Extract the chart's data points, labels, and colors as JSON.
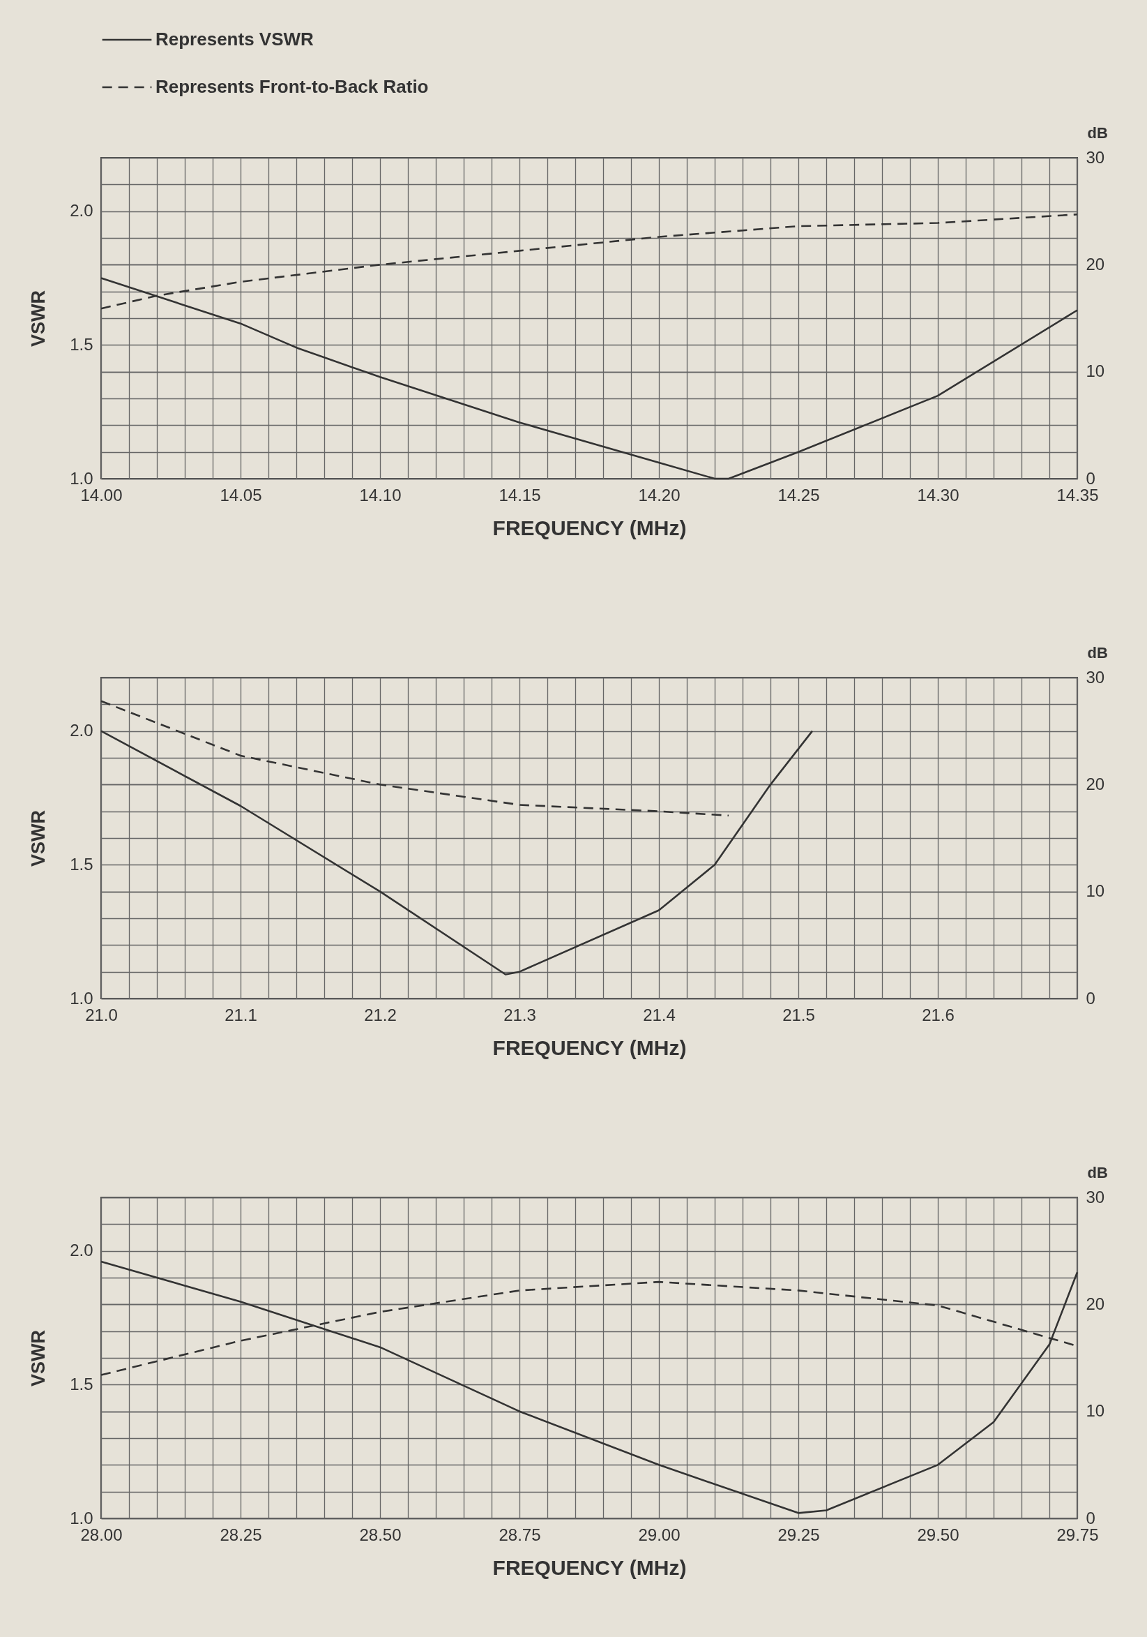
{
  "chart_data": [
    {
      "type": "line",
      "xlabel": "FREQUENCY (MHz)",
      "ylabel": "VSWR",
      "y2label": "dB",
      "legend": "top left",
      "grid": true,
      "xlim": [
        14.0,
        14.35
      ],
      "ylim": [
        1.0,
        2.2
      ],
      "y2lim": [
        0,
        30
      ],
      "xticks": [
        {
          "value": 14,
          "label": "14.00"
        },
        {
          "value": 14.01,
          "label": null
        },
        {
          "value": 14.02,
          "label": null
        },
        {
          "value": 14.03,
          "label": null
        },
        {
          "value": 14.04,
          "label": null
        },
        14.05,
        {
          "value": 14.06,
          "label": null
        },
        {
          "value": 14.07,
          "label": null
        },
        {
          "value": 14.08,
          "label": null
        },
        {
          "value": 14.09,
          "label": null
        },
        {
          "value": 14.1,
          "label": "14.10"
        },
        {
          "value": 14.11,
          "label": null
        },
        {
          "value": 14.12,
          "label": null
        },
        {
          "value": 14.13,
          "label": null
        },
        {
          "value": 14.14,
          "label": null
        },
        14.15,
        {
          "value": 14.16,
          "label": null
        },
        {
          "value": 14.17,
          "label": null
        },
        {
          "value": 14.18,
          "label": null
        },
        {
          "value": 14.19,
          "label": null
        },
        {
          "value": 14.2,
          "label": "14.20"
        },
        {
          "value": 14.21,
          "label": null
        },
        {
          "value": 14.22,
          "label": null
        },
        {
          "value": 14.23,
          "label": null
        },
        {
          "value": 14.24,
          "label": null
        },
        14.25,
        {
          "value": 14.26,
          "label": null
        },
        {
          "value": 14.27,
          "label": null
        },
        {
          "value": 14.28,
          "label": null
        },
        {
          "value": 14.29,
          "label": null
        },
        {
          "value": 14.3,
          "label": "14.30"
        },
        {
          "value": 14.31,
          "label": null
        },
        {
          "value": 14.32,
          "label": null
        },
        {
          "value": 14.33,
          "label": null
        },
        {
          "value": 14.34,
          "label": null
        },
        14.35
      ],
      "yticks": [
        {
          "value": 1,
          "label": "1.0"
        },
        {
          "value": 1.1,
          "label": null
        },
        {
          "value": 1.2,
          "label": null
        },
        {
          "value": 1.3,
          "label": null
        },
        {
          "value": 1.4,
          "label": null
        },
        {
          "value": 1.5,
          "label": "1.5"
        },
        {
          "value": 1.6,
          "label": null
        },
        {
          "value": 1.7,
          "label": null
        },
        {
          "value": 1.8,
          "label": null
        },
        {
          "value": 1.9,
          "label": null
        },
        {
          "value": 2,
          "label": "2.0"
        },
        {
          "value": 2.1,
          "label": null
        },
        {
          "value": 2.2,
          "label": null
        }
      ],
      "y2ticks": [
        0,
        10,
        20,
        30
      ],
      "series": [
        {
          "name": "Represents VSWR",
          "color": "#333333",
          "line_style": "solid",
          "x": [
            14.0,
            14.05,
            14.07,
            14.1,
            14.15,
            14.2,
            14.22,
            14.225,
            14.25,
            14.3,
            14.35
          ],
          "values": [
            1.75,
            1.58,
            1.49,
            1.38,
            1.21,
            1.06,
            1.0,
            1.0,
            1.1,
            1.31,
            1.63
          ]
        },
        {
          "name": "Represents Front-to-Back Ratio",
          "color": "#333333",
          "line_style": "dashed",
          "axis": "y2",
          "x": [
            14.0,
            14.02,
            14.05,
            14.1,
            14.15,
            14.2,
            14.25,
            14.3,
            14.35
          ],
          "values": [
            15.9,
            17.1,
            18.4,
            20.0,
            21.3,
            22.6,
            23.6,
            23.9,
            24.7
          ]
        }
      ]
    },
    {
      "type": "line",
      "xlabel": "FREQUENCY (MHz)",
      "ylabel": "VSWR",
      "y2label": "dB",
      "grid": true,
      "xlim": [
        21.0,
        21.7
      ],
      "ylim": [
        1.0,
        2.2
      ],
      "y2lim": [
        0,
        30
      ],
      "xticks": [
        {
          "value": 21,
          "label": "21.0"
        },
        {
          "value": 21.02,
          "label": null
        },
        {
          "value": 21.04,
          "label": null
        },
        {
          "value": 21.06,
          "label": null
        },
        {
          "value": 21.08,
          "label": null
        },
        21.1,
        {
          "value": 21.12,
          "label": null
        },
        {
          "value": 21.14,
          "label": null
        },
        {
          "value": 21.16,
          "label": null
        },
        {
          "value": 21.18,
          "label": null
        },
        21.2,
        {
          "value": 21.22,
          "label": null
        },
        {
          "value": 21.24,
          "label": null
        },
        {
          "value": 21.26,
          "label": null
        },
        {
          "value": 21.28,
          "label": null
        },
        21.3,
        {
          "value": 21.32,
          "label": null
        },
        {
          "value": 21.34,
          "label": null
        },
        {
          "value": 21.36,
          "label": null
        },
        {
          "value": 21.38,
          "label": null
        },
        21.4,
        {
          "value": 21.42,
          "label": null
        },
        {
          "value": 21.44,
          "label": null
        },
        {
          "value": 21.46,
          "label": null
        },
        {
          "value": 21.48,
          "label": null
        },
        21.5,
        {
          "value": 21.52,
          "label": null
        },
        {
          "value": 21.54,
          "label": null
        },
        {
          "value": 21.56,
          "label": null
        },
        {
          "value": 21.58,
          "label": null
        },
        21.6,
        {
          "value": 21.62,
          "label": null
        },
        {
          "value": 21.64,
          "label": null
        },
        {
          "value": 21.66,
          "label": null
        },
        {
          "value": 21.68,
          "label": null
        },
        {
          "value": 21.7,
          "label": null
        }
      ],
      "yticks": [
        {
          "value": 1,
          "label": "1.0"
        },
        {
          "value": 1.1,
          "label": null
        },
        {
          "value": 1.2,
          "label": null
        },
        {
          "value": 1.3,
          "label": null
        },
        {
          "value": 1.4,
          "label": null
        },
        {
          "value": 1.5,
          "label": "1.5"
        },
        {
          "value": 1.6,
          "label": null
        },
        {
          "value": 1.7,
          "label": null
        },
        {
          "value": 1.8,
          "label": null
        },
        {
          "value": 1.9,
          "label": null
        },
        {
          "value": 2,
          "label": "2.0"
        },
        {
          "value": 2.1,
          "label": null
        },
        {
          "value": 2.2,
          "label": null
        }
      ],
      "y2ticks": [
        0,
        10,
        20,
        30
      ],
      "series": [
        {
          "color": "#333333",
          "line_style": "solid",
          "x": [
            21.0,
            21.1,
            21.2,
            21.29,
            21.3,
            21.4,
            21.44,
            21.48,
            21.51
          ],
          "values": [
            2.0,
            1.72,
            1.4,
            1.09,
            1.1,
            1.33,
            1.5,
            1.8,
            2.0
          ]
        },
        {
          "color": "#333333",
          "line_style": "dashed",
          "axis": "y2",
          "x": [
            21.0,
            21.1,
            21.2,
            21.3,
            21.4,
            21.45
          ],
          "values": [
            27.8,
            22.7,
            20.0,
            18.1,
            17.5,
            17.1
          ]
        }
      ]
    },
    {
      "type": "line",
      "xlabel": "FREQUENCY (MHz)",
      "ylabel": "VSWR",
      "y2label": "dB",
      "grid": true,
      "xlim": [
        28.0,
        29.75
      ],
      "ylim": [
        1.0,
        2.2
      ],
      "y2lim": [
        0,
        30
      ],
      "xticks": [
        {
          "value": 28,
          "label": "28.00"
        },
        {
          "value": 28.05,
          "label": null
        },
        {
          "value": 28.1,
          "label": null
        },
        {
          "value": 28.15,
          "label": null
        },
        {
          "value": 28.2,
          "label": null
        },
        28.25,
        {
          "value": 28.3,
          "label": null
        },
        {
          "value": 28.35,
          "label": null
        },
        {
          "value": 28.4,
          "label": null
        },
        {
          "value": 28.45,
          "label": null
        },
        {
          "value": 28.5,
          "label": "28.50"
        },
        {
          "value": 28.55,
          "label": null
        },
        {
          "value": 28.6,
          "label": null
        },
        {
          "value": 28.65,
          "label": null
        },
        {
          "value": 28.7,
          "label": null
        },
        28.75,
        {
          "value": 28.8,
          "label": null
        },
        {
          "value": 28.85,
          "label": null
        },
        {
          "value": 28.9,
          "label": null
        },
        {
          "value": 28.95,
          "label": null
        },
        {
          "value": 29,
          "label": "29.00"
        },
        {
          "value": 29.05,
          "label": null
        },
        {
          "value": 29.1,
          "label": null
        },
        {
          "value": 29.15,
          "label": null
        },
        {
          "value": 29.2,
          "label": null
        },
        29.25,
        {
          "value": 29.3,
          "label": null
        },
        {
          "value": 29.35,
          "label": null
        },
        {
          "value": 29.4,
          "label": null
        },
        {
          "value": 29.45,
          "label": null
        },
        {
          "value": 29.5,
          "label": "29.50"
        },
        {
          "value": 29.55,
          "label": null
        },
        {
          "value": 29.6,
          "label": null
        },
        {
          "value": 29.65,
          "label": null
        },
        {
          "value": 29.7,
          "label": null
        },
        29.75
      ],
      "yticks": [
        {
          "value": 1,
          "label": "1.0"
        },
        {
          "value": 1.1,
          "label": null
        },
        {
          "value": 1.2,
          "label": null
        },
        {
          "value": 1.3,
          "label": null
        },
        {
          "value": 1.4,
          "label": null
        },
        {
          "value": 1.5,
          "label": "1.5"
        },
        {
          "value": 1.6,
          "label": null
        },
        {
          "value": 1.7,
          "label": null
        },
        {
          "value": 1.8,
          "label": null
        },
        {
          "value": 1.9,
          "label": null
        },
        {
          "value": 2,
          "label": "2.0"
        },
        {
          "value": 2.1,
          "label": null
        },
        {
          "value": 2.2,
          "label": null
        }
      ],
      "y2ticks": [
        0,
        10,
        20,
        30
      ],
      "series": [
        {
          "color": "#333333",
          "line_style": "solid",
          "x": [
            28.0,
            28.25,
            28.5,
            28.75,
            29.0,
            29.25,
            29.3,
            29.5,
            29.6,
            29.7,
            29.75
          ],
          "values": [
            1.96,
            1.81,
            1.64,
            1.4,
            1.2,
            1.02,
            1.03,
            1.2,
            1.36,
            1.65,
            1.92
          ]
        },
        {
          "color": "#333333",
          "line_style": "dashed",
          "axis": "y2",
          "x": [
            28.0,
            28.25,
            28.5,
            28.75,
            29.0,
            29.25,
            29.5,
            29.75
          ],
          "values": [
            13.4,
            16.6,
            19.3,
            21.3,
            22.1,
            21.3,
            19.9,
            16.1
          ]
        }
      ]
    }
  ]
}
